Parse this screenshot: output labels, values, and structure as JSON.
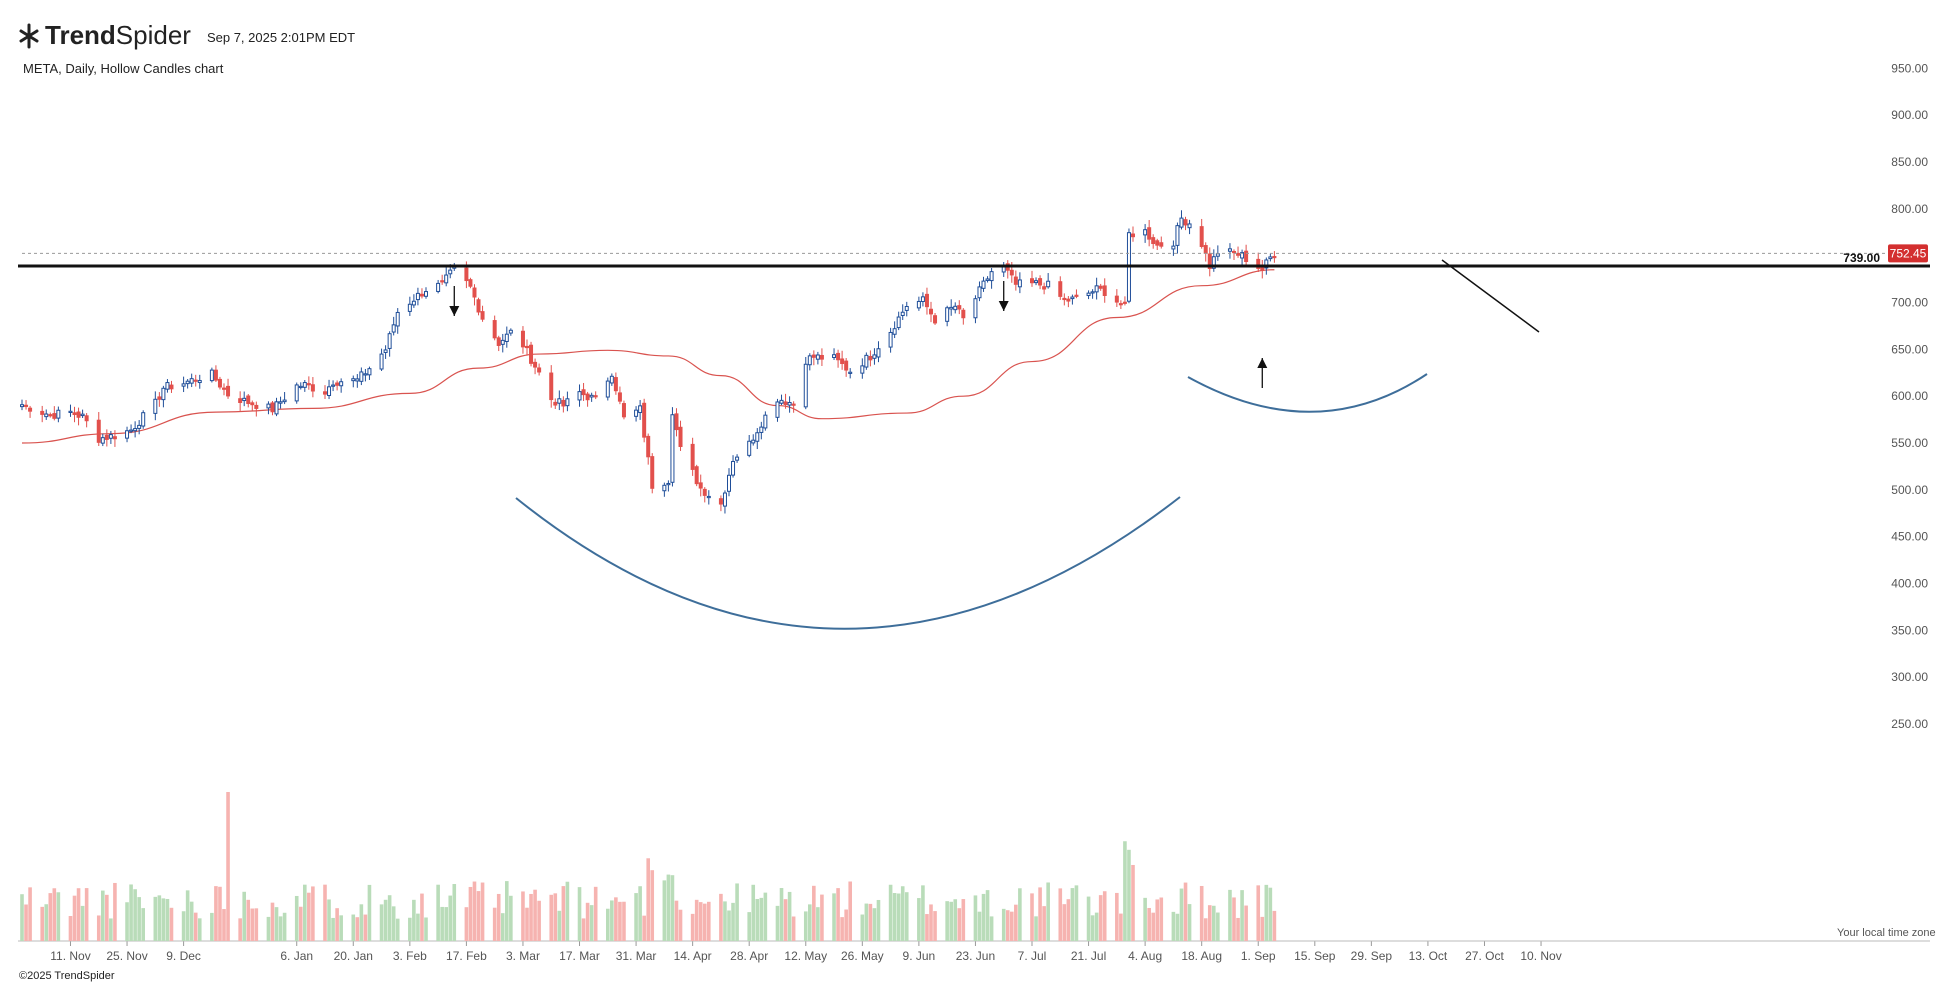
{
  "header": {
    "logo_bold": "Trend",
    "logo_light": "Spider",
    "timestamp": "Sep 7, 2025 2:01PM EDT",
    "subtitle": "META, Daily, Hollow Candles chart"
  },
  "footer": {
    "copyright": "©2025 TrendSpider",
    "timezone_note": "Your local time zone"
  },
  "colors": {
    "up": "#1f4e99",
    "down": "#e2504c",
    "vol_up": "#b9dcb9",
    "vol_down": "#f6b3b0",
    "ma": "#d9534f",
    "pattern": "#3e6e9a",
    "level": "#111111",
    "price_tag": "#d32f2f"
  },
  "icons": {
    "logo": "trendspider-logo-icon",
    "markers": [
      "arrow-down-icon",
      "arrow-down-icon",
      "arrow-up-icon"
    ]
  },
  "chart_data": {
    "type": "candlestick",
    "symbol": "META",
    "interval": "Daily",
    "style": "Hollow Candles",
    "y_ticks": [
      950,
      900,
      850,
      800,
      750,
      700,
      650,
      600,
      550,
      500,
      450,
      400,
      350,
      300,
      250
    ],
    "y_tick_labels": [
      "950.00",
      "900.00",
      "850.00",
      "800.00",
      "750.00",
      "700.00",
      "650.00",
      "600.00",
      "550.00",
      "500.00",
      "450.00",
      "400.00",
      "350.00",
      "300.00",
      "250.00"
    ],
    "x_tick_labels": [
      "11. Nov",
      "25. Nov",
      "9. Dec",
      "6. Jan",
      "20. Jan",
      "3. Feb",
      "17. Feb",
      "3. Mar",
      "17. Mar",
      "31. Mar",
      "14. Apr",
      "28. Apr",
      "12. May",
      "26. May",
      "9. Jun",
      "23. Jun",
      "7. Jul",
      "21. Jul",
      "4. Aug",
      "18. Aug",
      "1. Sep",
      "15. Sep",
      "29. Sep",
      "13. Oct",
      "27. Oct",
      "10. Nov"
    ],
    "x_tick_dates": [
      "2024-11-11",
      "2024-11-25",
      "2024-12-09",
      "2025-01-06",
      "2025-01-20",
      "2025-02-03",
      "2025-02-17",
      "2025-03-03",
      "2025-03-17",
      "2025-03-31",
      "2025-04-14",
      "2025-04-28",
      "2025-05-12",
      "2025-05-26",
      "2025-06-09",
      "2025-06-23",
      "2025-07-07",
      "2025-07-21",
      "2025-08-04",
      "2025-08-18",
      "2025-09-01",
      "2025-09-15",
      "2025-09-29",
      "2025-10-13",
      "2025-10-27",
      "2025-11-10"
    ],
    "candles": [
      {
        "d": "2024-10-30",
        "c": 591
      },
      {
        "d": "2024-11-06",
        "c": 580
      },
      {
        "d": "2024-11-11",
        "c": 583
      },
      {
        "d": "2024-11-14",
        "c": 578
      },
      {
        "d": "2024-11-18",
        "c": 555
      },
      {
        "d": "2024-11-22",
        "c": 558
      },
      {
        "d": "2024-11-26",
        "c": 564
      },
      {
        "d": "2024-12-02",
        "c": 592
      },
      {
        "d": "2024-12-04",
        "c": 609
      },
      {
        "d": "2024-12-09",
        "c": 614
      },
      {
        "d": "2024-12-13",
        "c": 620
      },
      {
        "d": "2024-12-16",
        "c": 623
      },
      {
        "d": "2024-12-20",
        "c": 602
      },
      {
        "d": "2024-12-24",
        "c": 595
      },
      {
        "d": "2024-12-31",
        "c": 586
      },
      {
        "d": "2025-01-06",
        "c": 611
      },
      {
        "d": "2025-01-08",
        "c": 612
      },
      {
        "d": "2025-01-13",
        "c": 605
      },
      {
        "d": "2025-01-15",
        "c": 616
      },
      {
        "d": "2025-01-21",
        "c": 617
      },
      {
        "d": "2025-01-24",
        "c": 630
      },
      {
        "d": "2025-01-28",
        "c": 650
      },
      {
        "d": "2025-01-31",
        "c": 690
      },
      {
        "d": "2025-02-04",
        "c": 704
      },
      {
        "d": "2025-02-07",
        "c": 714
      },
      {
        "d": "2025-02-11",
        "c": 719
      },
      {
        "d": "2025-02-14",
        "c": 736
      },
      {
        "d": "2025-02-18",
        "c": 716
      },
      {
        "d": "2025-02-21",
        "c": 684
      },
      {
        "d": "2025-02-25",
        "c": 657
      },
      {
        "d": "2025-02-28",
        "c": 668
      },
      {
        "d": "2025-03-03",
        "c": 655
      },
      {
        "d": "2025-03-07",
        "c": 625
      },
      {
        "d": "2025-03-10",
        "c": 597
      },
      {
        "d": "2025-03-13",
        "c": 590
      },
      {
        "d": "2025-03-17",
        "c": 604
      },
      {
        "d": "2025-03-21",
        "c": 596
      },
      {
        "d": "2025-03-25",
        "c": 626
      },
      {
        "d": "2025-03-28",
        "c": 576
      },
      {
        "d": "2025-04-01",
        "c": 586
      },
      {
        "d": "2025-04-04",
        "c": 505
      },
      {
        "d": "2025-04-08",
        "c": 511
      },
      {
        "d": "2025-04-09",
        "c": 585
      },
      {
        "d": "2025-04-11",
        "c": 543
      },
      {
        "d": "2025-04-16",
        "c": 502
      },
      {
        "d": "2025-04-21",
        "c": 485
      },
      {
        "d": "2025-04-24",
        "c": 533
      },
      {
        "d": "2025-04-28",
        "c": 549
      },
      {
        "d": "2025-05-01",
        "c": 572
      },
      {
        "d": "2025-05-05",
        "c": 598
      },
      {
        "d": "2025-05-09",
        "c": 592
      },
      {
        "d": "2025-05-12",
        "c": 639
      },
      {
        "d": "2025-05-14",
        "c": 642
      },
      {
        "d": "2025-05-19",
        "c": 640
      },
      {
        "d": "2025-05-23",
        "c": 627
      },
      {
        "d": "2025-05-28",
        "c": 643
      },
      {
        "d": "2025-06-02",
        "c": 670
      },
      {
        "d": "2025-06-06",
        "c": 697
      },
      {
        "d": "2025-06-10",
        "c": 702
      },
      {
        "d": "2025-06-13",
        "c": 682
      },
      {
        "d": "2025-06-18",
        "c": 696
      },
      {
        "d": "2025-06-20",
        "c": 682
      },
      {
        "d": "2025-06-24",
        "c": 712
      },
      {
        "d": "2025-06-27",
        "c": 733
      },
      {
        "d": "2025-06-30",
        "c": 738
      },
      {
        "d": "2025-07-03",
        "c": 719
      },
      {
        "d": "2025-07-08",
        "c": 720
      },
      {
        "d": "2025-07-11",
        "c": 718
      },
      {
        "d": "2025-07-15",
        "c": 702
      },
      {
        "d": "2025-07-18",
        "c": 704
      },
      {
        "d": "2025-07-23",
        "c": 714
      },
      {
        "d": "2025-07-25",
        "c": 712
      },
      {
        "d": "2025-07-30",
        "c": 695
      },
      {
        "d": "2025-07-31",
        "c": 773
      },
      {
        "d": "2025-08-04",
        "c": 776
      },
      {
        "d": "2025-08-07",
        "c": 761
      },
      {
        "d": "2025-08-11",
        "c": 765
      },
      {
        "d": "2025-08-13",
        "c": 790
      },
      {
        "d": "2025-08-15",
        "c": 785
      },
      {
        "d": "2025-08-18",
        "c": 763
      },
      {
        "d": "2025-08-20",
        "c": 739
      },
      {
        "d": "2025-08-22",
        "c": 754
      },
      {
        "d": "2025-08-26",
        "c": 753
      },
      {
        "d": "2025-08-28",
        "c": 750
      },
      {
        "d": "2025-09-02",
        "c": 735
      },
      {
        "d": "2025-09-04",
        "c": 748
      },
      {
        "d": "2025-09-05",
        "c": 752.45
      }
    ],
    "moving_average": [
      {
        "d": "2024-10-30",
        "v": 550
      },
      {
        "d": "2024-11-21",
        "v": 560
      },
      {
        "d": "2024-12-17",
        "v": 583
      },
      {
        "d": "2025-01-10",
        "v": 587
      },
      {
        "d": "2025-02-03",
        "v": 603
      },
      {
        "d": "2025-02-20",
        "v": 630
      },
      {
        "d": "2025-03-07",
        "v": 645
      },
      {
        "d": "2025-03-24",
        "v": 649
      },
      {
        "d": "2025-04-08",
        "v": 643
      },
      {
        "d": "2025-04-21",
        "v": 622
      },
      {
        "d": "2025-05-05",
        "v": 590
      },
      {
        "d": "2025-05-16",
        "v": 576
      },
      {
        "d": "2025-06-06",
        "v": 582
      },
      {
        "d": "2025-06-20",
        "v": 600
      },
      {
        "d": "2025-07-07",
        "v": 637
      },
      {
        "d": "2025-07-28",
        "v": 684
      },
      {
        "d": "2025-08-18",
        "v": 718
      },
      {
        "d": "2025-09-05",
        "v": 735
      }
    ],
    "volume_bars": 252,
    "horizontal_level": {
      "value": 739,
      "label": "739.00"
    },
    "last_price": {
      "value": 752.45,
      "label": "752.45"
    },
    "annotations": [
      "cup-and-handle",
      "descending-trendline",
      "arrow-markers"
    ]
  }
}
